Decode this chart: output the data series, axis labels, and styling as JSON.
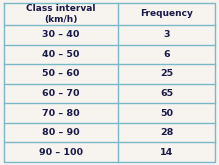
{
  "headers": [
    "Class interval\n(km/h)",
    "Frequency"
  ],
  "rows": [
    [
      "30 – 40",
      "3"
    ],
    [
      "40 – 50",
      "6"
    ],
    [
      "50 – 60",
      "25"
    ],
    [
      "60 – 70",
      "65"
    ],
    [
      "70 – 80",
      "50"
    ],
    [
      "80 – 90",
      "28"
    ],
    [
      "90 – 100",
      "14"
    ]
  ],
  "background_color": "#f7f4ef",
  "header_bg": "#f7f4ef",
  "line_color": "#7ab8c8",
  "text_color": "#1a1a4a",
  "header_fontsize": 6.5,
  "cell_fontsize": 6.8,
  "fig_width": 2.19,
  "fig_height": 1.65,
  "dpi": 100,
  "col_split": 0.54
}
